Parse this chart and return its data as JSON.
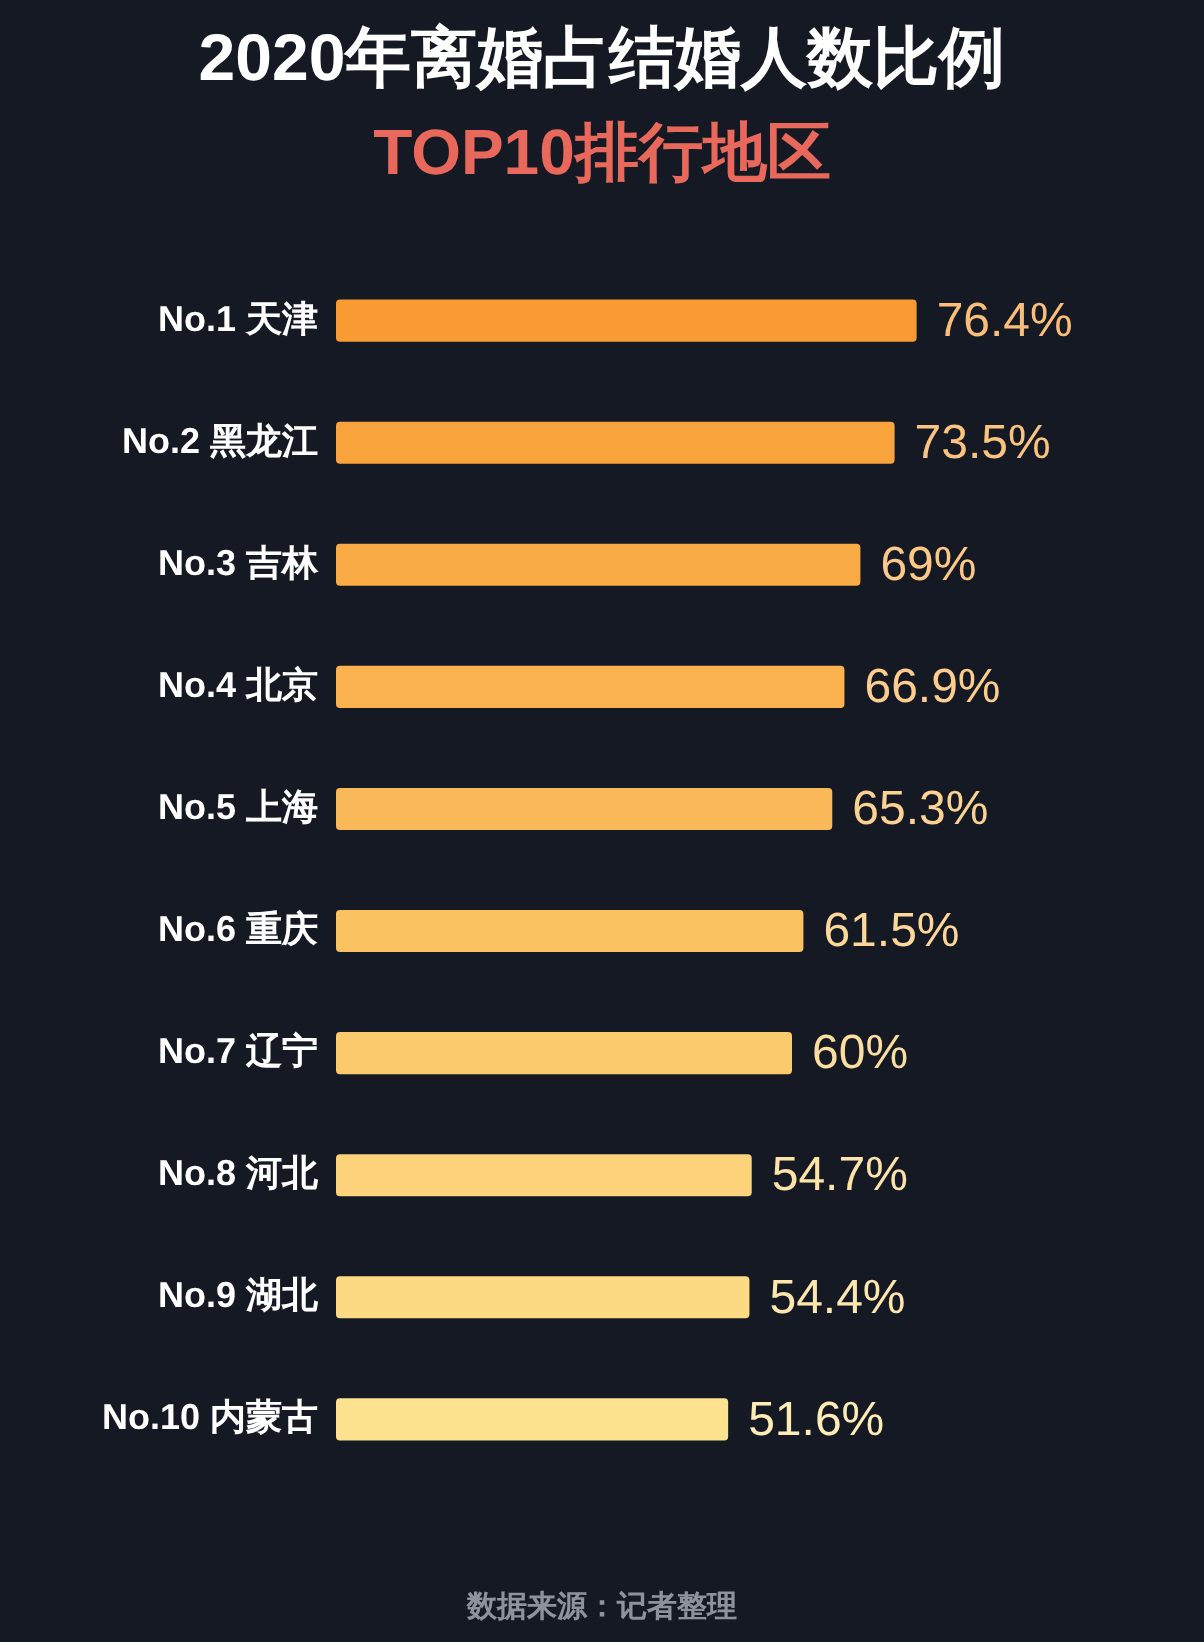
{
  "chart_data": {
    "type": "bar",
    "orientation": "horizontal",
    "title": "2020年离婚占结婚人数比例",
    "subtitle": "TOP10排行地区",
    "categories": [
      "No.1 天津",
      "No.2 黑龙江",
      "No.3 吉林",
      "No.4 北京",
      "No.5 上海",
      "No.6 重庆",
      "No.7 辽宁",
      "No.8 河北",
      "No.9 湖北",
      "No.10 内蒙古"
    ],
    "values": [
      76.4,
      73.5,
      69,
      66.9,
      65.3,
      61.5,
      60,
      54.7,
      54.4,
      51.6
    ],
    "value_labels": [
      "76.4%",
      "73.5%",
      "69%",
      "66.9%",
      "65.3%",
      "61.5%",
      "60%",
      "54.7%",
      "54.4%",
      "51.6%"
    ],
    "colors": [
      "#f89b33",
      "#f9a33c",
      "#f9ab46",
      "#fab24f",
      "#fab958",
      "#fbc262",
      "#fbca6d",
      "#fcd37a",
      "#fcda83",
      "#fde28f"
    ],
    "annotations": [
      "数据来源：记者整理"
    ]
  }
}
